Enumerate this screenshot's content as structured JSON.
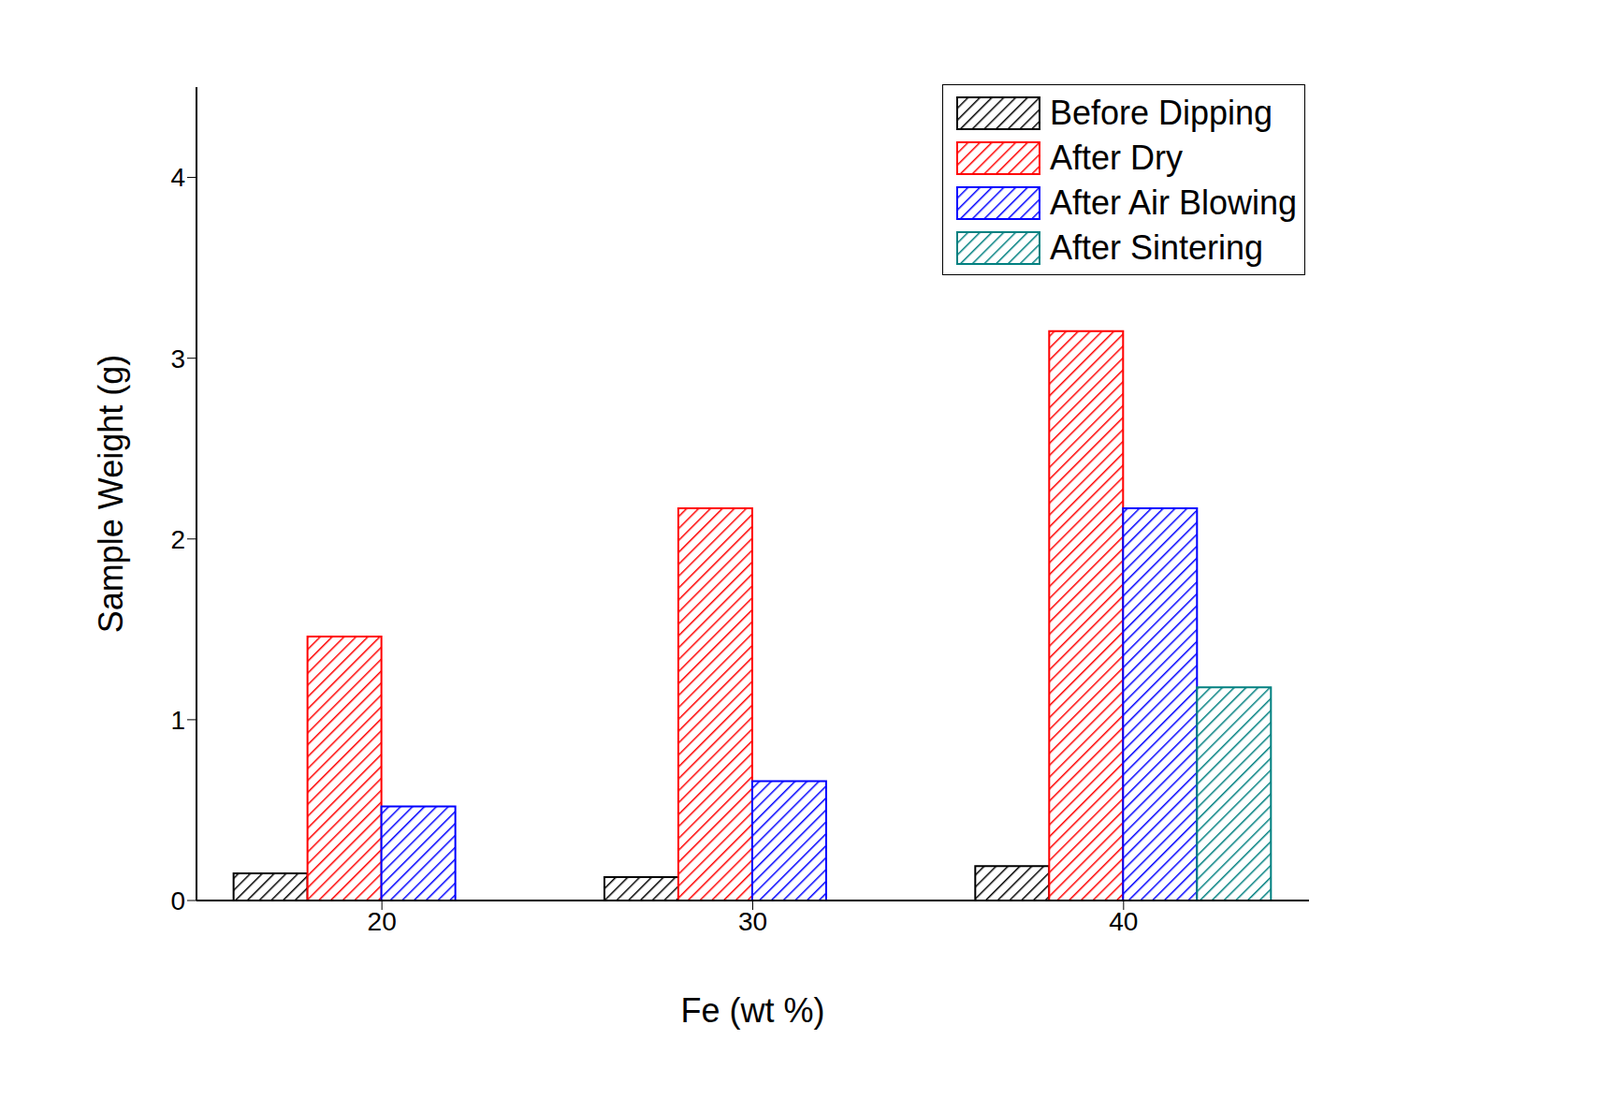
{
  "chart_data": {
    "type": "bar",
    "x_label": "Fe  (wt %)",
    "y_label": "Sample Weight (g)",
    "categories": [
      "20",
      "30",
      "40"
    ],
    "series": [
      {
        "name": "Before Dipping",
        "color": "#000000",
        "values": [
          0.15,
          0.13,
          0.19
        ]
      },
      {
        "name": "After Dry",
        "color": "#ff0000",
        "values": [
          1.46,
          2.17,
          3.15
        ]
      },
      {
        "name": "After Air Blowing",
        "color": "#0000ff",
        "values": [
          0.52,
          0.66,
          2.17
        ]
      },
      {
        "name": "After Sintering",
        "color": "#008080",
        "values": [
          null,
          null,
          1.18
        ]
      }
    ],
    "ylim": [
      0,
      4.5
    ],
    "yticks": [
      0,
      1,
      2,
      3,
      4
    ],
    "legend": "upper right"
  }
}
